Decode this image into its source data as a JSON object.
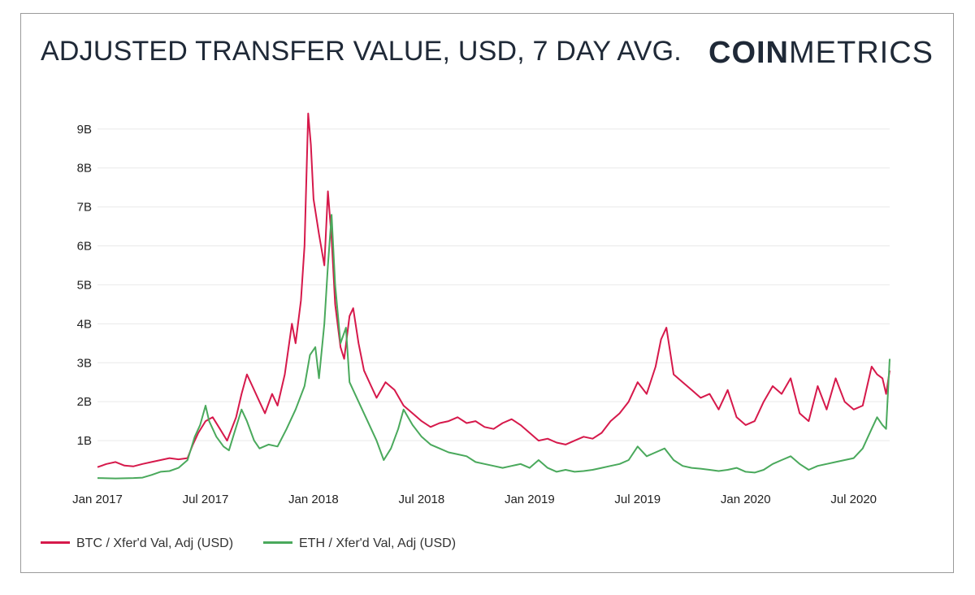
{
  "title": "ADJUSTED TRANSFER VALUE, USD, 7 DAY AVG.",
  "brand": {
    "bold": "COIN",
    "light": "METRICS"
  },
  "colors": {
    "btc": "#d6194b",
    "eth": "#4aa95c",
    "grid": "#e9e9e9"
  },
  "legend": [
    {
      "label": "BTC / Xfer'd Val, Adj (USD)"
    },
    {
      "label": "ETH / Xfer'd Val, Adj (USD)"
    }
  ],
  "chart_data": {
    "type": "line",
    "title": "ADJUSTED TRANSFER VALUE, USD, 7 DAY AVG.",
    "xlabel": "",
    "ylabel": "",
    "x_unit": "months since Jan 2017",
    "xlim": [
      0,
      44
    ],
    "ylim": [
      0,
      9.6
    ],
    "y_unit": "billion USD",
    "grid": true,
    "y_ticks": [
      {
        "value": 1,
        "label": "1B"
      },
      {
        "value": 2,
        "label": "2B"
      },
      {
        "value": 3,
        "label": "3B"
      },
      {
        "value": 4,
        "label": "4B"
      },
      {
        "value": 5,
        "label": "5B"
      },
      {
        "value": 6,
        "label": "6B"
      },
      {
        "value": 7,
        "label": "7B"
      },
      {
        "value": 8,
        "label": "8B"
      },
      {
        "value": 9,
        "label": "9B"
      }
    ],
    "x_ticks": [
      {
        "value": 0,
        "label": "Jan 2017"
      },
      {
        "value": 6,
        "label": "Jul 2017"
      },
      {
        "value": 12,
        "label": "Jan 2018"
      },
      {
        "value": 18,
        "label": "Jul 2018"
      },
      {
        "value": 24,
        "label": "Jan 2019"
      },
      {
        "value": 30,
        "label": "Jul 2019"
      },
      {
        "value": 36,
        "label": "Jan 2020"
      },
      {
        "value": 42,
        "label": "Jul 2020"
      }
    ],
    "series": [
      {
        "name": "BTC / Xfer'd Val, Adj (USD)",
        "color": "#d6194b",
        "points": [
          [
            0,
            0.32
          ],
          [
            0.5,
            0.4
          ],
          [
            1,
            0.45
          ],
          [
            1.5,
            0.36
          ],
          [
            2,
            0.34
          ],
          [
            2.5,
            0.4
          ],
          [
            3,
            0.45
          ],
          [
            3.5,
            0.5
          ],
          [
            4,
            0.55
          ],
          [
            4.5,
            0.52
          ],
          [
            5,
            0.55
          ],
          [
            5.3,
            0.9
          ],
          [
            5.6,
            1.2
          ],
          [
            6,
            1.5
          ],
          [
            6.4,
            1.6
          ],
          [
            6.8,
            1.3
          ],
          [
            7.2,
            1.0
          ],
          [
            7.7,
            1.6
          ],
          [
            8,
            2.2
          ],
          [
            8.3,
            2.7
          ],
          [
            8.6,
            2.4
          ],
          [
            9,
            2.0
          ],
          [
            9.3,
            1.7
          ],
          [
            9.7,
            2.2
          ],
          [
            10,
            1.9
          ],
          [
            10.4,
            2.7
          ],
          [
            10.8,
            4.0
          ],
          [
            11,
            3.5
          ],
          [
            11.3,
            4.6
          ],
          [
            11.5,
            6.0
          ],
          [
            11.7,
            9.4
          ],
          [
            11.85,
            8.6
          ],
          [
            12,
            7.2
          ],
          [
            12.3,
            6.3
          ],
          [
            12.6,
            5.5
          ],
          [
            12.8,
            7.4
          ],
          [
            13,
            6.2
          ],
          [
            13.2,
            4.5
          ],
          [
            13.5,
            3.4
          ],
          [
            13.7,
            3.1
          ],
          [
            14,
            4.2
          ],
          [
            14.2,
            4.4
          ],
          [
            14.5,
            3.5
          ],
          [
            14.8,
            2.8
          ],
          [
            15.2,
            2.4
          ],
          [
            15.5,
            2.1
          ],
          [
            16,
            2.5
          ],
          [
            16.5,
            2.3
          ],
          [
            17,
            1.9
          ],
          [
            17.5,
            1.7
          ],
          [
            18,
            1.5
          ],
          [
            18.5,
            1.35
          ],
          [
            19,
            1.45
          ],
          [
            19.5,
            1.5
          ],
          [
            20,
            1.6
          ],
          [
            20.5,
            1.45
          ],
          [
            21,
            1.5
          ],
          [
            21.5,
            1.35
          ],
          [
            22,
            1.3
          ],
          [
            22.5,
            1.45
          ],
          [
            23,
            1.55
          ],
          [
            23.5,
            1.4
          ],
          [
            24,
            1.2
          ],
          [
            24.5,
            1.0
          ],
          [
            25,
            1.05
          ],
          [
            25.5,
            0.95
          ],
          [
            26,
            0.9
          ],
          [
            26.5,
            1.0
          ],
          [
            27,
            1.1
          ],
          [
            27.5,
            1.05
          ],
          [
            28,
            1.2
          ],
          [
            28.5,
            1.5
          ],
          [
            29,
            1.7
          ],
          [
            29.5,
            2.0
          ],
          [
            30,
            2.5
          ],
          [
            30.5,
            2.2
          ],
          [
            31,
            2.9
          ],
          [
            31.3,
            3.6
          ],
          [
            31.6,
            3.9
          ],
          [
            32,
            2.7
          ],
          [
            32.5,
            2.5
          ],
          [
            33,
            2.3
          ],
          [
            33.5,
            2.1
          ],
          [
            34,
            2.2
          ],
          [
            34.5,
            1.8
          ],
          [
            35,
            2.3
          ],
          [
            35.5,
            1.6
          ],
          [
            36,
            1.4
          ],
          [
            36.5,
            1.5
          ],
          [
            37,
            2.0
          ],
          [
            37.5,
            2.4
          ],
          [
            38,
            2.2
          ],
          [
            38.5,
            2.6
          ],
          [
            39,
            1.7
          ],
          [
            39.5,
            1.5
          ],
          [
            40,
            2.4
          ],
          [
            40.5,
            1.8
          ],
          [
            41,
            2.6
          ],
          [
            41.5,
            2.0
          ],
          [
            42,
            1.8
          ],
          [
            42.5,
            1.9
          ],
          [
            43,
            2.9
          ],
          [
            43.3,
            2.7
          ],
          [
            43.6,
            2.6
          ],
          [
            43.8,
            2.2
          ],
          [
            44,
            2.8
          ]
        ]
      },
      {
        "name": "ETH / Xfer'd Val, Adj (USD)",
        "color": "#4aa95c",
        "points": [
          [
            0,
            0.04
          ],
          [
            1,
            0.03
          ],
          [
            2,
            0.04
          ],
          [
            2.5,
            0.05
          ],
          [
            3,
            0.12
          ],
          [
            3.5,
            0.2
          ],
          [
            4,
            0.22
          ],
          [
            4.5,
            0.3
          ],
          [
            5,
            0.5
          ],
          [
            5.4,
            1.1
          ],
          [
            5.7,
            1.4
          ],
          [
            6,
            1.9
          ],
          [
            6.2,
            1.5
          ],
          [
            6.6,
            1.1
          ],
          [
            7,
            0.85
          ],
          [
            7.3,
            0.75
          ],
          [
            7.6,
            1.2
          ],
          [
            8,
            1.8
          ],
          [
            8.3,
            1.5
          ],
          [
            8.7,
            1.0
          ],
          [
            9,
            0.8
          ],
          [
            9.5,
            0.9
          ],
          [
            10,
            0.85
          ],
          [
            10.5,
            1.3
          ],
          [
            11,
            1.8
          ],
          [
            11.5,
            2.4
          ],
          [
            11.8,
            3.2
          ],
          [
            12.1,
            3.4
          ],
          [
            12.3,
            2.6
          ],
          [
            12.6,
            4.0
          ],
          [
            12.8,
            5.5
          ],
          [
            13,
            6.8
          ],
          [
            13.2,
            5.0
          ],
          [
            13.5,
            3.5
          ],
          [
            13.8,
            3.9
          ],
          [
            14,
            2.5
          ],
          [
            14.5,
            2.0
          ],
          [
            15,
            1.5
          ],
          [
            15.5,
            1.0
          ],
          [
            15.9,
            0.5
          ],
          [
            16.3,
            0.8
          ],
          [
            16.7,
            1.3
          ],
          [
            17,
            1.8
          ],
          [
            17.5,
            1.4
          ],
          [
            18,
            1.1
          ],
          [
            18.5,
            0.9
          ],
          [
            19,
            0.8
          ],
          [
            19.5,
            0.7
          ],
          [
            20,
            0.65
          ],
          [
            20.5,
            0.6
          ],
          [
            21,
            0.45
          ],
          [
            21.5,
            0.4
          ],
          [
            22,
            0.35
          ],
          [
            22.5,
            0.3
          ],
          [
            23,
            0.35
          ],
          [
            23.5,
            0.4
          ],
          [
            24,
            0.3
          ],
          [
            24.5,
            0.5
          ],
          [
            25,
            0.3
          ],
          [
            25.5,
            0.2
          ],
          [
            26,
            0.25
          ],
          [
            26.5,
            0.2
          ],
          [
            27,
            0.22
          ],
          [
            27.5,
            0.25
          ],
          [
            28,
            0.3
          ],
          [
            28.5,
            0.35
          ],
          [
            29,
            0.4
          ],
          [
            29.5,
            0.5
          ],
          [
            30,
            0.85
          ],
          [
            30.5,
            0.6
          ],
          [
            31,
            0.7
          ],
          [
            31.5,
            0.8
          ],
          [
            32,
            0.5
          ],
          [
            32.5,
            0.35
          ],
          [
            33,
            0.3
          ],
          [
            33.5,
            0.28
          ],
          [
            34,
            0.25
          ],
          [
            34.5,
            0.22
          ],
          [
            35,
            0.25
          ],
          [
            35.5,
            0.3
          ],
          [
            36,
            0.2
          ],
          [
            36.5,
            0.18
          ],
          [
            37,
            0.25
          ],
          [
            37.5,
            0.4
          ],
          [
            38,
            0.5
          ],
          [
            38.5,
            0.6
          ],
          [
            39,
            0.4
          ],
          [
            39.5,
            0.25
          ],
          [
            40,
            0.35
          ],
          [
            40.5,
            0.4
          ],
          [
            41,
            0.45
          ],
          [
            41.5,
            0.5
          ],
          [
            42,
            0.55
          ],
          [
            42.5,
            0.8
          ],
          [
            43,
            1.3
          ],
          [
            43.3,
            1.6
          ],
          [
            43.6,
            1.4
          ],
          [
            43.8,
            1.3
          ],
          [
            44,
            3.1
          ]
        ]
      }
    ]
  }
}
